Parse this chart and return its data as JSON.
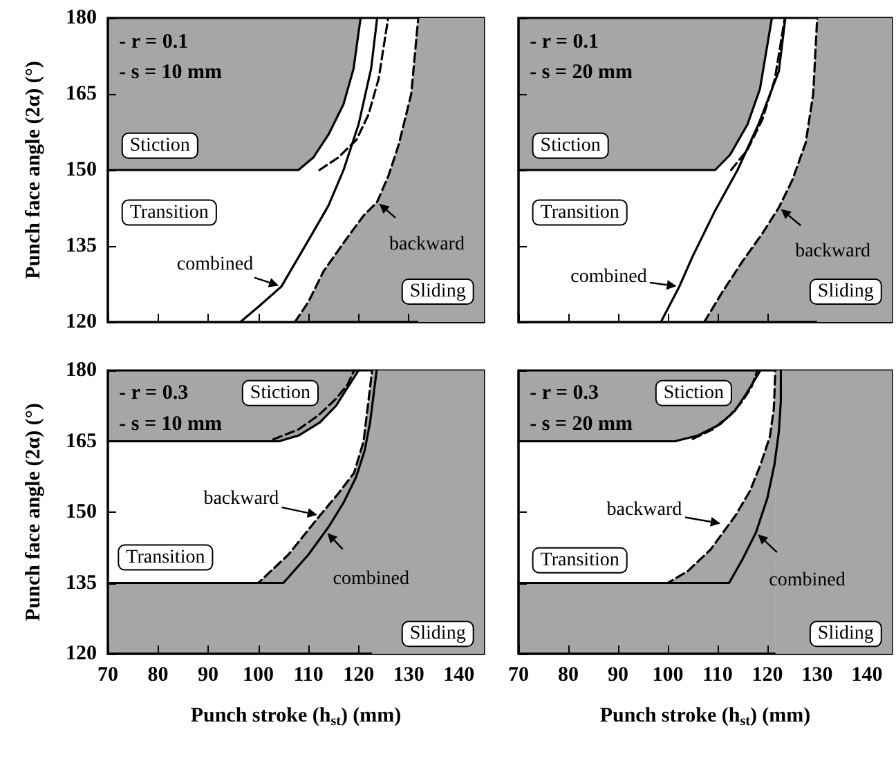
{
  "chart_data": [
    {
      "type": "line",
      "ylabel": "Punch face angle (2α) (°)",
      "xlim": [
        70,
        145
      ],
      "ylim": [
        120,
        180
      ],
      "xticks": [
        70,
        80,
        90,
        100,
        110,
        120,
        130,
        140
      ],
      "yticks": [
        120,
        135,
        150,
        165,
        180
      ],
      "tick_labels": "y",
      "grid": false,
      "marker": "none",
      "annotations": [
        "- r = 0.1",
        "- s = 10 mm",
        "Stiction",
        "Transition",
        "Sliding",
        {
          "text": "combined",
          "x": 104.6,
          "y": 127
        },
        {
          "text": "backward",
          "x": 123.7,
          "y": 143.7
        }
      ],
      "bands": [
        {
          "axis": "x",
          "from": 131.9,
          "to": 145,
          "color": "#a6a6a6"
        }
      ],
      "series": [
        {
          "color": "#000000",
          "line_style": "solid",
          "x": [
            70,
            108,
            111,
            114,
            117,
            119,
            120.4
          ],
          "values": [
            150,
            150,
            152.5,
            157,
            163,
            170,
            180
          ],
          "lower": [
            150,
            150,
            152.5,
            157,
            163,
            170,
            180
          ],
          "upper": [
            180,
            180,
            180,
            180,
            180,
            180,
            180
          ]
        },
        {
          "color": "#000000",
          "line_style": "dashed",
          "x": [
            112.2,
            116,
            119.6,
            122,
            124,
            125.9
          ],
          "values": [
            150,
            152.5,
            156,
            161,
            168,
            180
          ]
        },
        {
          "color": "#000000",
          "line_style": "solid",
          "x": [
            96.4,
            100,
            104.6,
            110.5,
            114,
            117,
            120,
            122.5,
            123.7
          ],
          "values": [
            120,
            123,
            127,
            137,
            143,
            150,
            159,
            170,
            180
          ]
        },
        {
          "type": "area",
          "color": "#000000",
          "line_style": "dashed",
          "x": [
            107.3,
            110,
            113,
            118,
            121,
            123.7,
            126,
            128,
            130.5,
            131.9
          ],
          "values": [
            120,
            124,
            130,
            137,
            141,
            143.7,
            149,
            155,
            165,
            180
          ]
        }
      ]
    },
    {
      "type": "line",
      "xlim": [
        70,
        145
      ],
      "ylim": [
        120,
        180
      ],
      "xticks": [
        70,
        80,
        90,
        100,
        110,
        120,
        130,
        140
      ],
      "yticks": [
        120,
        135,
        150,
        165,
        180
      ],
      "tick_labels": false,
      "grid": false,
      "marker": "none",
      "annotations": [
        "- r = 0.1",
        "- s = 20 mm",
        "Stiction",
        "Transition",
        "Sliding",
        {
          "text": "combined",
          "x": 102.3,
          "y": 127
        },
        {
          "text": "backward",
          "x": 122.3,
          "y": 142.6
        }
      ],
      "bands": [
        {
          "axis": "x",
          "from": 130,
          "to": 145,
          "color": "#a6a6a6"
        }
      ],
      "series": [
        {
          "color": "#000000",
          "line_style": "solid",
          "x": [
            70,
            109.5,
            112.5,
            116,
            118.5,
            120.9
          ],
          "values": [
            150,
            150,
            153,
            159,
            166,
            180
          ],
          "lower": [
            150,
            150,
            153,
            159,
            166,
            180
          ],
          "upper": [
            180,
            180,
            180,
            180,
            180,
            180
          ]
        },
        {
          "color": "#000000",
          "line_style": "dashed",
          "x": [
            112.7,
            116,
            119,
            121.5,
            123.5
          ],
          "values": [
            150,
            154,
            160,
            168,
            180
          ]
        },
        {
          "color": "#000000",
          "line_style": "solid",
          "x": [
            98.6,
            102.3,
            105,
            109.5,
            114,
            118.2,
            122.3,
            123.6
          ],
          "values": [
            120,
            127,
            133,
            142,
            150,
            159,
            169.5,
            180
          ]
        },
        {
          "type": "area",
          "color": "#000000",
          "line_style": "dashed",
          "x": [
            107.3,
            111,
            115,
            119,
            122.3,
            125,
            127.7,
            129.2,
            130
          ],
          "values": [
            120,
            126,
            132,
            137.5,
            142.6,
            148,
            155.4,
            165,
            180
          ]
        }
      ]
    },
    {
      "type": "line",
      "xlabel": "Punch stroke (h$_{st}$) (mm)",
      "ylabel": "Punch face angle (2α) (°)",
      "xlim": [
        70,
        145
      ],
      "ylim": [
        120,
        180
      ],
      "xticks": [
        70,
        80,
        90,
        100,
        110,
        120,
        130,
        140
      ],
      "yticks": [
        120,
        135,
        150,
        165,
        180
      ],
      "grid": false,
      "marker": "none",
      "annotations": [
        "- r = 0.3",
        "- s = 10 mm",
        "Stiction",
        "Transition",
        "Sliding",
        {
          "text": "backward",
          "x": 112.3,
          "y": 149.3
        },
        {
          "text": "combined",
          "x": 113.4,
          "y": 146
        }
      ],
      "bands": [
        {
          "axis": "x",
          "from": 122.7,
          "to": 145,
          "color": "#a6a6a6"
        }
      ],
      "series": [
        {
          "color": "#000000",
          "line_style": "solid",
          "x": [
            70,
            104.1,
            108,
            112.3,
            115.5,
            117.7,
            120
          ],
          "values": [
            165,
            165,
            166.2,
            169,
            172.5,
            176.2,
            180
          ],
          "lower": [
            165,
            165,
            166.2,
            169,
            172.5,
            176.2,
            180
          ],
          "upper": [
            180,
            180,
            180,
            180,
            180,
            180,
            180
          ]
        },
        {
          "color": "#000000",
          "line_style": "dashed",
          "x": [
            103,
            108,
            112,
            115.5,
            117.8,
            119.1
          ],
          "values": [
            165.4,
            167.5,
            170.5,
            174,
            177,
            180
          ]
        },
        {
          "color": "#000000",
          "line_style": "solid",
          "x": [
            70,
            105,
            110,
            114.1,
            117,
            119.5,
            121.2,
            122.3,
            123.6
          ],
          "values": [
            135,
            135,
            141,
            147,
            152,
            157.4,
            163,
            169,
            180
          ]
        },
        {
          "type": "area",
          "color": "#000000",
          "line_style": "dashed",
          "x": [
            70,
            100,
            106,
            112.3,
            116,
            119.1,
            121,
            122.7
          ],
          "values": [
            135,
            135,
            141,
            149.3,
            154,
            158.3,
            165,
            180
          ]
        }
      ]
    },
    {
      "type": "line",
      "xlabel": "Punch stroke (h$_{st}$) (mm)",
      "xlim": [
        70,
        145
      ],
      "ylim": [
        120,
        180
      ],
      "xticks": [
        70,
        80,
        90,
        100,
        110,
        120,
        130,
        140
      ],
      "yticks": [
        120,
        135,
        150,
        165,
        180
      ],
      "tick_labels": "x",
      "grid": false,
      "marker": "none",
      "annotations": [
        "- r = 0.3",
        "- s = 20 mm",
        "Stiction",
        "Transition",
        "Sliding",
        {
          "text": "backward",
          "x": 111.1,
          "y": 147.5
        },
        {
          "text": "combined",
          "x": 117.7,
          "y": 145.7
        }
      ],
      "bands": [
        {
          "axis": "x",
          "from": 121.6,
          "to": 145,
          "color": "#a6a6a6"
        }
      ],
      "series": [
        {
          "color": "#000000",
          "line_style": "solid",
          "x": [
            70,
            101.4,
            106,
            110.5,
            113.5,
            115.9,
            118.6
          ],
          "values": [
            165,
            165,
            166.2,
            168.6,
            171.5,
            175.3,
            180
          ],
          "lower": [
            165,
            165,
            166.2,
            168.6,
            171.5,
            175.3,
            180
          ],
          "upper": [
            180,
            180,
            180,
            180,
            180,
            180,
            180
          ]
        },
        {
          "color": "#000000",
          "line_style": "dashed",
          "x": [
            105,
            109,
            112.5,
            115,
            116.8,
            118
          ],
          "values": [
            165.5,
            167.5,
            170.5,
            173.5,
            176.5,
            180
          ]
        },
        {
          "color": "#000000",
          "line_style": "solid",
          "x": [
            70,
            112.3,
            115,
            117.7,
            120,
            121.4,
            122.3,
            122.7,
            122.7
          ],
          "values": [
            135,
            135,
            140,
            145.7,
            153,
            160,
            167,
            173.5,
            180
          ]
        },
        {
          "type": "area",
          "color": "#000000",
          "line_style": "dashed",
          "x": [
            70,
            100,
            104,
            108.6,
            113.6,
            116.5,
            118.6,
            120.5,
            121.3,
            121.6
          ],
          "values": [
            135,
            135,
            137.5,
            142.1,
            149.3,
            154.5,
            160,
            166,
            172,
            180
          ]
        }
      ]
    }
  ]
}
